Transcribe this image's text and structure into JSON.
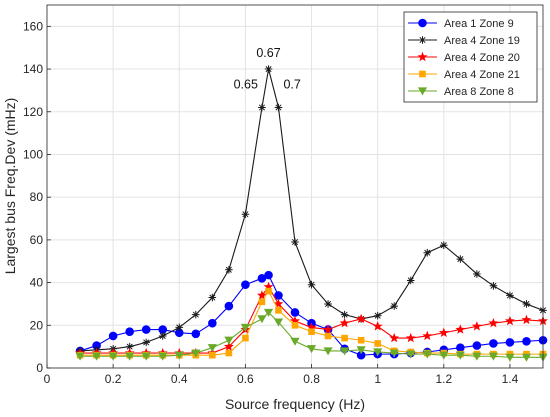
{
  "chart_data": {
    "type": "line",
    "xlabel": "Source frequency (Hz)",
    "ylabel": "Largest bus Freq.Dev (mHz)",
    "xlim": [
      0,
      1.5
    ],
    "ylim": [
      0,
      170
    ],
    "x_ticks": [
      0,
      0.2,
      0.4,
      0.6,
      0.8,
      1,
      1.2,
      1.4
    ],
    "x_tick_labels": [
      "0",
      "0.2",
      "0.4",
      "0.6",
      "0.8",
      "1",
      "1.2",
      "1.4"
    ],
    "y_ticks": [
      0,
      20,
      40,
      60,
      80,
      100,
      120,
      140,
      160
    ],
    "y_tick_labels": [
      "0",
      "20",
      "40",
      "60",
      "80",
      "100",
      "120",
      "140",
      "160"
    ],
    "grid": true,
    "legend_position": "top-right",
    "annotations": [
      {
        "text": "0.67",
        "x": 0.67,
        "y": 140,
        "anchor": "above"
      },
      {
        "text": "0.65",
        "x": 0.65,
        "y": 122,
        "anchor": "left"
      },
      {
        "text": "0.7",
        "x": 0.7,
        "y": 122,
        "anchor": "right"
      }
    ],
    "series": [
      {
        "name": "Area 1 Zone 9",
        "color": "#0000ff",
        "marker": "circle",
        "x": [
          0.1,
          0.15,
          0.2,
          0.25,
          0.3,
          0.35,
          0.4,
          0.45,
          0.5,
          0.55,
          0.6,
          0.65,
          0.67,
          0.7,
          0.75,
          0.8,
          0.85,
          0.9,
          0.95,
          1.0,
          1.05,
          1.1,
          1.15,
          1.2,
          1.25,
          1.3,
          1.35,
          1.4,
          1.45,
          1.5
        ],
        "y": [
          8,
          10.5,
          15,
          17,
          18,
          18,
          16.5,
          16,
          21,
          29,
          39,
          42,
          43.5,
          34,
          26,
          21,
          18,
          9,
          6,
          6.5,
          6.5,
          7,
          7.5,
          8.5,
          9.5,
          10.5,
          11.5,
          12,
          12.5,
          13
        ]
      },
      {
        "name": "Area 4 Zone 19",
        "color": "#1a1a1a",
        "marker": "asterisk",
        "x": [
          0.1,
          0.15,
          0.2,
          0.25,
          0.3,
          0.35,
          0.4,
          0.45,
          0.5,
          0.55,
          0.6,
          0.65,
          0.67,
          0.7,
          0.75,
          0.8,
          0.85,
          0.9,
          0.95,
          1.0,
          1.05,
          1.1,
          1.15,
          1.2,
          1.25,
          1.3,
          1.35,
          1.4,
          1.45,
          1.5
        ],
        "y": [
          8,
          8.5,
          9,
          10,
          12,
          15,
          19,
          25,
          33,
          46,
          72,
          122,
          140,
          122,
          59,
          39,
          30,
          25,
          23,
          24.5,
          29,
          41,
          54,
          57.5,
          51,
          44,
          38.5,
          34,
          30,
          27
        ]
      },
      {
        "name": "Area 4 Zone 20",
        "color": "#ff0000",
        "marker": "star",
        "x": [
          0.1,
          0.15,
          0.2,
          0.25,
          0.3,
          0.35,
          0.4,
          0.45,
          0.5,
          0.55,
          0.6,
          0.65,
          0.67,
          0.7,
          0.75,
          0.8,
          0.85,
          0.9,
          0.95,
          1.0,
          1.05,
          1.1,
          1.15,
          1.2,
          1.25,
          1.3,
          1.35,
          1.4,
          1.45,
          1.5
        ],
        "y": [
          7,
          7,
          7,
          7,
          7,
          7,
          7,
          7,
          7,
          10,
          18,
          34,
          38,
          30,
          22,
          19,
          18,
          21,
          23,
          19.5,
          14,
          14,
          15,
          16.5,
          18,
          19.5,
          21,
          22,
          22.5,
          22
        ]
      },
      {
        "name": "Area 4 Zone 21",
        "color": "#ffa500",
        "marker": "square",
        "x": [
          0.1,
          0.15,
          0.2,
          0.25,
          0.3,
          0.35,
          0.4,
          0.45,
          0.5,
          0.55,
          0.6,
          0.65,
          0.67,
          0.7,
          0.75,
          0.8,
          0.85,
          0.9,
          0.95,
          1.0,
          1.05,
          1.1,
          1.15,
          1.2,
          1.25,
          1.3,
          1.35,
          1.4,
          1.45,
          1.5
        ],
        "y": [
          6,
          6,
          6,
          6,
          6,
          6,
          6,
          6,
          6,
          7,
          14,
          31,
          36,
          27,
          20,
          17,
          15,
          14,
          13,
          11.5,
          8,
          7.5,
          7,
          7,
          6.5,
          6.5,
          6.5,
          6.5,
          6.5,
          6.5
        ]
      },
      {
        "name": "Area 8 Zone 8",
        "color": "#6aaa2a",
        "marker": "triangle-down",
        "x": [
          0.1,
          0.15,
          0.2,
          0.25,
          0.3,
          0.35,
          0.4,
          0.45,
          0.5,
          0.55,
          0.6,
          0.65,
          0.67,
          0.7,
          0.75,
          0.8,
          0.85,
          0.9,
          0.95,
          1.0,
          1.05,
          1.1,
          1.15,
          1.2,
          1.25,
          1.3,
          1.35,
          1.4,
          1.45,
          1.5
        ],
        "y": [
          5.5,
          5.5,
          5.5,
          5.5,
          5.5,
          5.5,
          6,
          7,
          9.5,
          13,
          19,
          23,
          26,
          21.5,
          12.5,
          9,
          8,
          8,
          8.5,
          7.5,
          7,
          6.5,
          6.5,
          6,
          6,
          5.5,
          5.5,
          5,
          5,
          5
        ]
      }
    ]
  }
}
